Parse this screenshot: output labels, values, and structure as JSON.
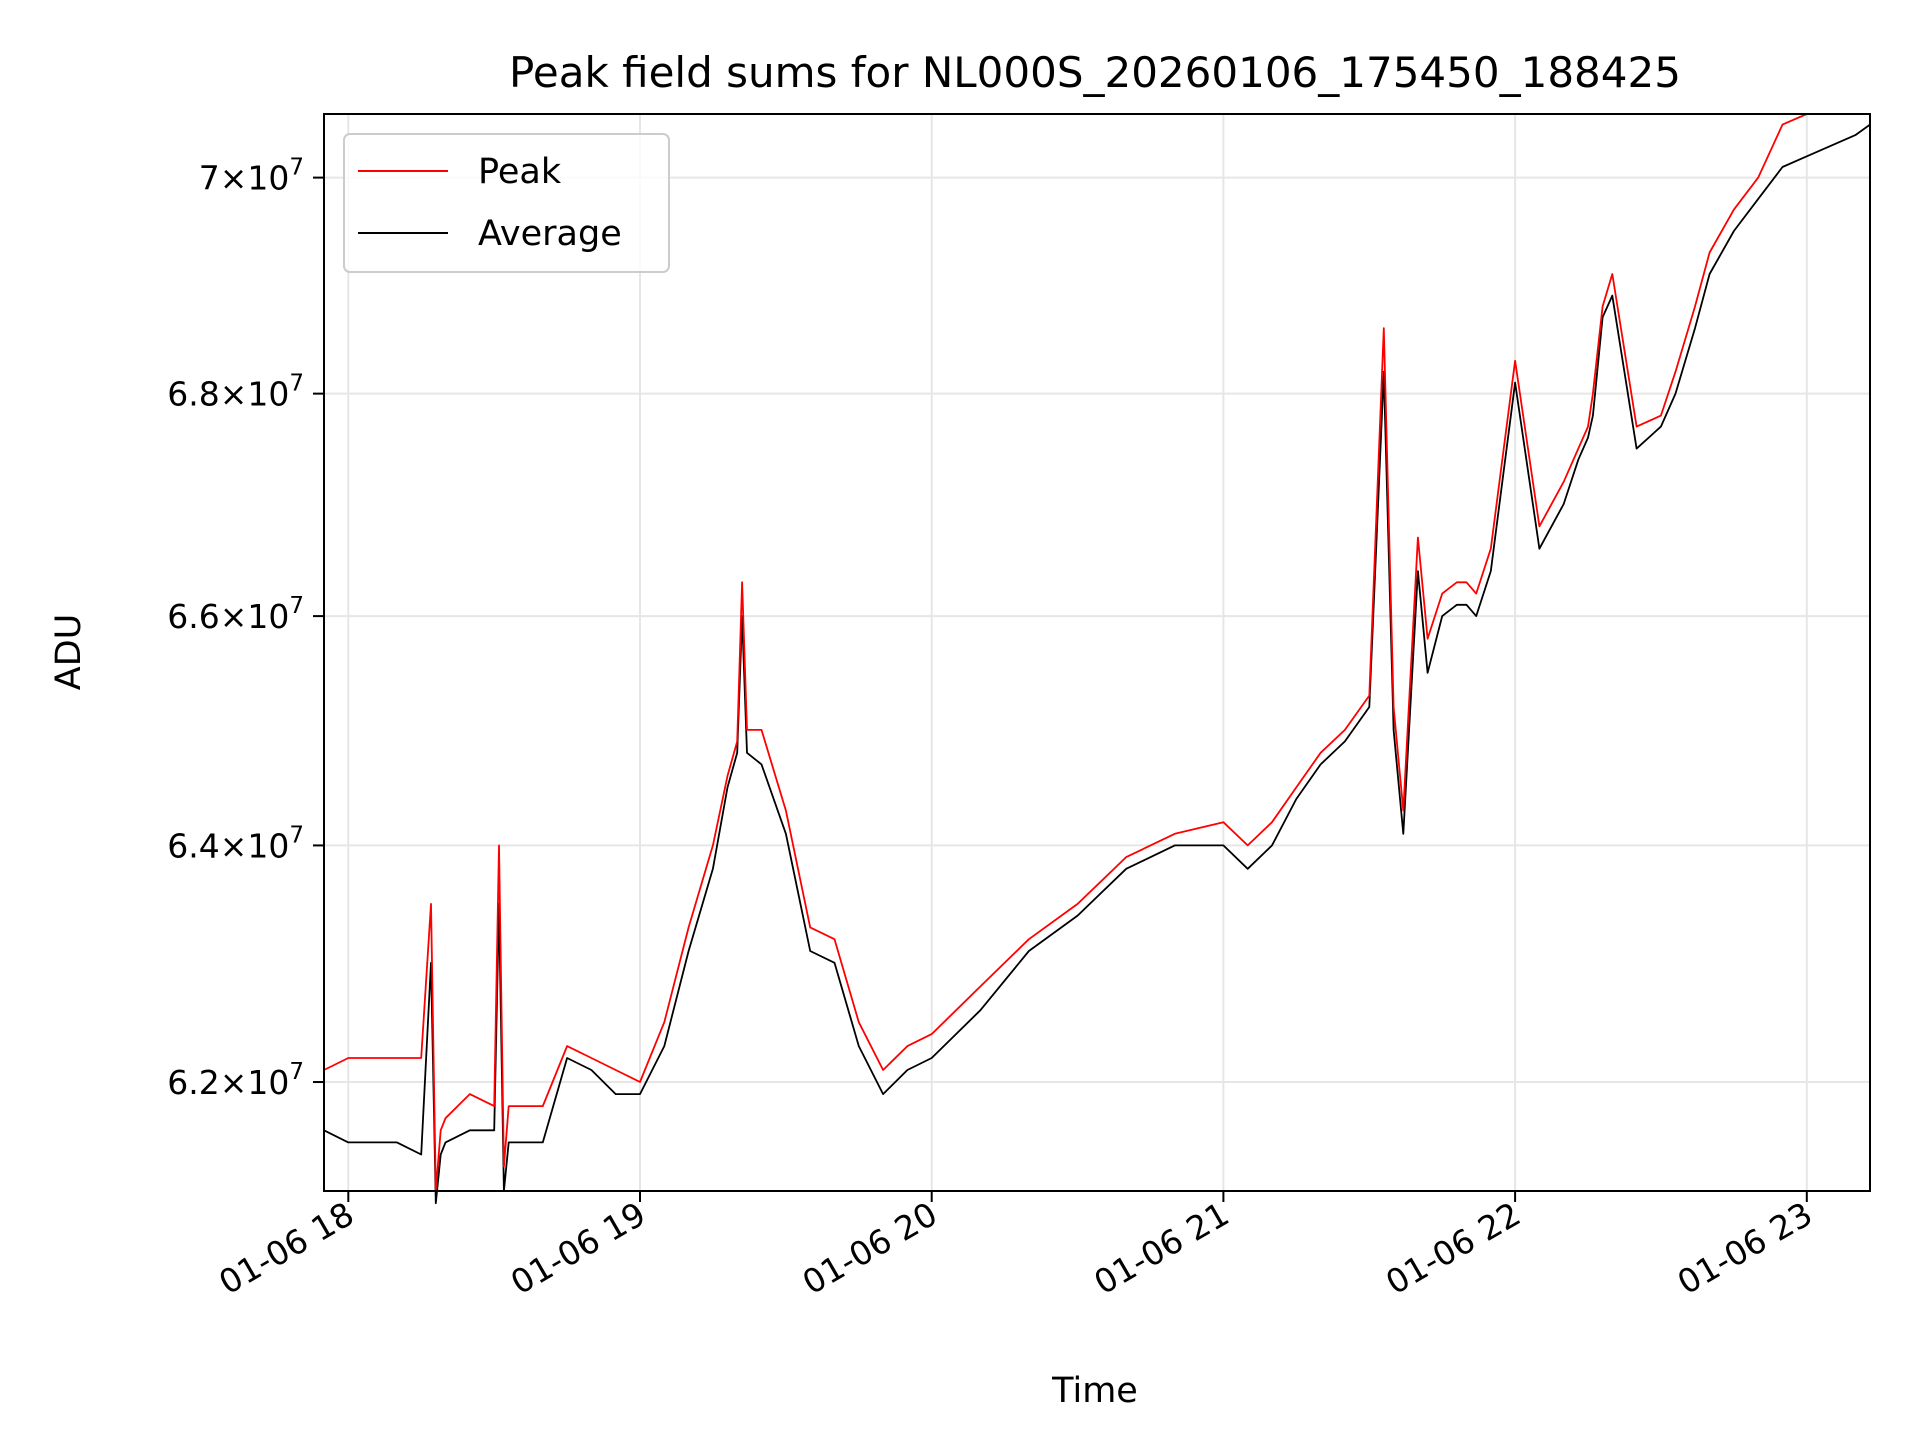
{
  "chart_data": {
    "type": "line",
    "title": "Peak field sums for NL000S_20260106_175450_188425",
    "xlabel": "Time",
    "ylabel": "ADU",
    "xlim": [
      "01-06 17:55",
      "01-06 23:13"
    ],
    "ylim": [
      61100000,
      70600000
    ],
    "y_scale": "log",
    "grid": true,
    "legend_position": "upper left",
    "x_ticks": [
      "01-06 18",
      "01-06 19",
      "01-06 20",
      "01-06 21",
      "01-06 22",
      "01-06 23"
    ],
    "y_ticks": [
      {
        "value": 62000000,
        "label_mantissa": "6.2",
        "label_exponent": "7"
      },
      {
        "value": 64000000,
        "label_mantissa": "6.4",
        "label_exponent": "7"
      },
      {
        "value": 66000000,
        "label_mantissa": "6.6",
        "label_exponent": "7"
      },
      {
        "value": 68000000,
        "label_mantissa": "6.8",
        "label_exponent": "7"
      },
      {
        "value": 70000000,
        "label_mantissa": "7",
        "label_exponent": "7"
      }
    ],
    "colors": {
      "Peak": "#ff0000",
      "Average": "#000000"
    },
    "series": [
      {
        "name": "Peak",
        "x": [
          "01-06 17:55",
          "01-06 18:00",
          "01-06 18:10",
          "01-06 18:15",
          "01-06 18:17",
          "01-06 18:18",
          "01-06 18:19",
          "01-06 18:20",
          "01-06 18:25",
          "01-06 18:30",
          "01-06 18:31",
          "01-06 18:32",
          "01-06 18:33",
          "01-06 18:40",
          "01-06 18:45",
          "01-06 18:50",
          "01-06 18:55",
          "01-06 19:00",
          "01-06 19:05",
          "01-06 19:10",
          "01-06 19:15",
          "01-06 19:18",
          "01-06 19:20",
          "01-06 19:21",
          "01-06 19:22",
          "01-06 19:25",
          "01-06 19:30",
          "01-06 19:35",
          "01-06 19:40",
          "01-06 19:45",
          "01-06 19:50",
          "01-06 19:55",
          "01-06 20:00",
          "01-06 20:10",
          "01-06 20:20",
          "01-06 20:30",
          "01-06 20:40",
          "01-06 20:50",
          "01-06 21:00",
          "01-06 21:05",
          "01-06 21:10",
          "01-06 21:15",
          "01-06 21:20",
          "01-06 21:25",
          "01-06 21:30",
          "01-06 21:33",
          "01-06 21:35",
          "01-06 21:37",
          "01-06 21:40",
          "01-06 21:42",
          "01-06 21:45",
          "01-06 21:48",
          "01-06 21:50",
          "01-06 21:52",
          "01-06 21:55",
          "01-06 22:00",
          "01-06 22:05",
          "01-06 22:10",
          "01-06 22:13",
          "01-06 22:15",
          "01-06 22:16",
          "01-06 22:18",
          "01-06 22:20",
          "01-06 22:25",
          "01-06 22:30",
          "01-06 22:33",
          "01-06 22:35",
          "01-06 22:37",
          "01-06 22:40",
          "01-06 22:45",
          "01-06 22:50",
          "01-06 22:55",
          "01-06 23:00",
          "01-06 23:05",
          "01-06 23:10",
          "01-06 23:13"
        ],
        "values": [
          62100000,
          62200000,
          62200000,
          62200000,
          63500000,
          61100000,
          61600000,
          61700000,
          61900000,
          61800000,
          64000000,
          61300000,
          61800000,
          61800000,
          62300000,
          62200000,
          62100000,
          62000000,
          62500000,
          63300000,
          64000000,
          64600000,
          64900000,
          66300000,
          65000000,
          65000000,
          64300000,
          63300000,
          63200000,
          62500000,
          62100000,
          62300000,
          62400000,
          62800000,
          63200000,
          63500000,
          63900000,
          64100000,
          64200000,
          64000000,
          64200000,
          64500000,
          64800000,
          65000000,
          65300000,
          68600000,
          65200000,
          64300000,
          66700000,
          65800000,
          66200000,
          66300000,
          66300000,
          66200000,
          66600000,
          68300000,
          66800000,
          67200000,
          67500000,
          67700000,
          68000000,
          68800000,
          69100000,
          67700000,
          67800000,
          68200000,
          68500000,
          68800000,
          69300000,
          69700000,
          70000000,
          70500000,
          70600000,
          70600000,
          70600000,
          70600000
        ]
      },
      {
        "name": "Average",
        "x": [
          "01-06 17:55",
          "01-06 18:00",
          "01-06 18:10",
          "01-06 18:15",
          "01-06 18:17",
          "01-06 18:18",
          "01-06 18:19",
          "01-06 18:20",
          "01-06 18:25",
          "01-06 18:30",
          "01-06 18:31",
          "01-06 18:32",
          "01-06 18:33",
          "01-06 18:40",
          "01-06 18:45",
          "01-06 18:50",
          "01-06 18:55",
          "01-06 19:00",
          "01-06 19:05",
          "01-06 19:10",
          "01-06 19:15",
          "01-06 19:18",
          "01-06 19:20",
          "01-06 19:21",
          "01-06 19:22",
          "01-06 19:25",
          "01-06 19:30",
          "01-06 19:35",
          "01-06 19:40",
          "01-06 19:45",
          "01-06 19:50",
          "01-06 19:55",
          "01-06 20:00",
          "01-06 20:10",
          "01-06 20:20",
          "01-06 20:30",
          "01-06 20:40",
          "01-06 20:50",
          "01-06 21:00",
          "01-06 21:05",
          "01-06 21:10",
          "01-06 21:15",
          "01-06 21:20",
          "01-06 21:25",
          "01-06 21:30",
          "01-06 21:33",
          "01-06 21:35",
          "01-06 21:37",
          "01-06 21:40",
          "01-06 21:42",
          "01-06 21:45",
          "01-06 21:48",
          "01-06 21:50",
          "01-06 21:52",
          "01-06 21:55",
          "01-06 22:00",
          "01-06 22:05",
          "01-06 22:10",
          "01-06 22:13",
          "01-06 22:15",
          "01-06 22:16",
          "01-06 22:18",
          "01-06 22:20",
          "01-06 22:25",
          "01-06 22:30",
          "01-06 22:33",
          "01-06 22:35",
          "01-06 22:37",
          "01-06 22:40",
          "01-06 22:45",
          "01-06 22:50",
          "01-06 22:55",
          "01-06 23:00",
          "01-06 23:05",
          "01-06 23:10",
          "01-06 23:13"
        ],
        "values": [
          61600000,
          61500000,
          61500000,
          61400000,
          63000000,
          61000000,
          61400000,
          61500000,
          61600000,
          61600000,
          63500000,
          61100000,
          61500000,
          61500000,
          62200000,
          62100000,
          61900000,
          61900000,
          62300000,
          63100000,
          63800000,
          64500000,
          64800000,
          66000000,
          64800000,
          64700000,
          64100000,
          63100000,
          63000000,
          62300000,
          61900000,
          62100000,
          62200000,
          62600000,
          63100000,
          63400000,
          63800000,
          64000000,
          64000000,
          63800000,
          64000000,
          64400000,
          64700000,
          64900000,
          65200000,
          68200000,
          65000000,
          64100000,
          66400000,
          65500000,
          66000000,
          66100000,
          66100000,
          66000000,
          66400000,
          68100000,
          66600000,
          67000000,
          67400000,
          67600000,
          67800000,
          68700000,
          68900000,
          67500000,
          67700000,
          68000000,
          68300000,
          68600000,
          69100000,
          69500000,
          69800000,
          70100000,
          70200000,
          70300000,
          70400000,
          70500000
        ]
      }
    ]
  }
}
